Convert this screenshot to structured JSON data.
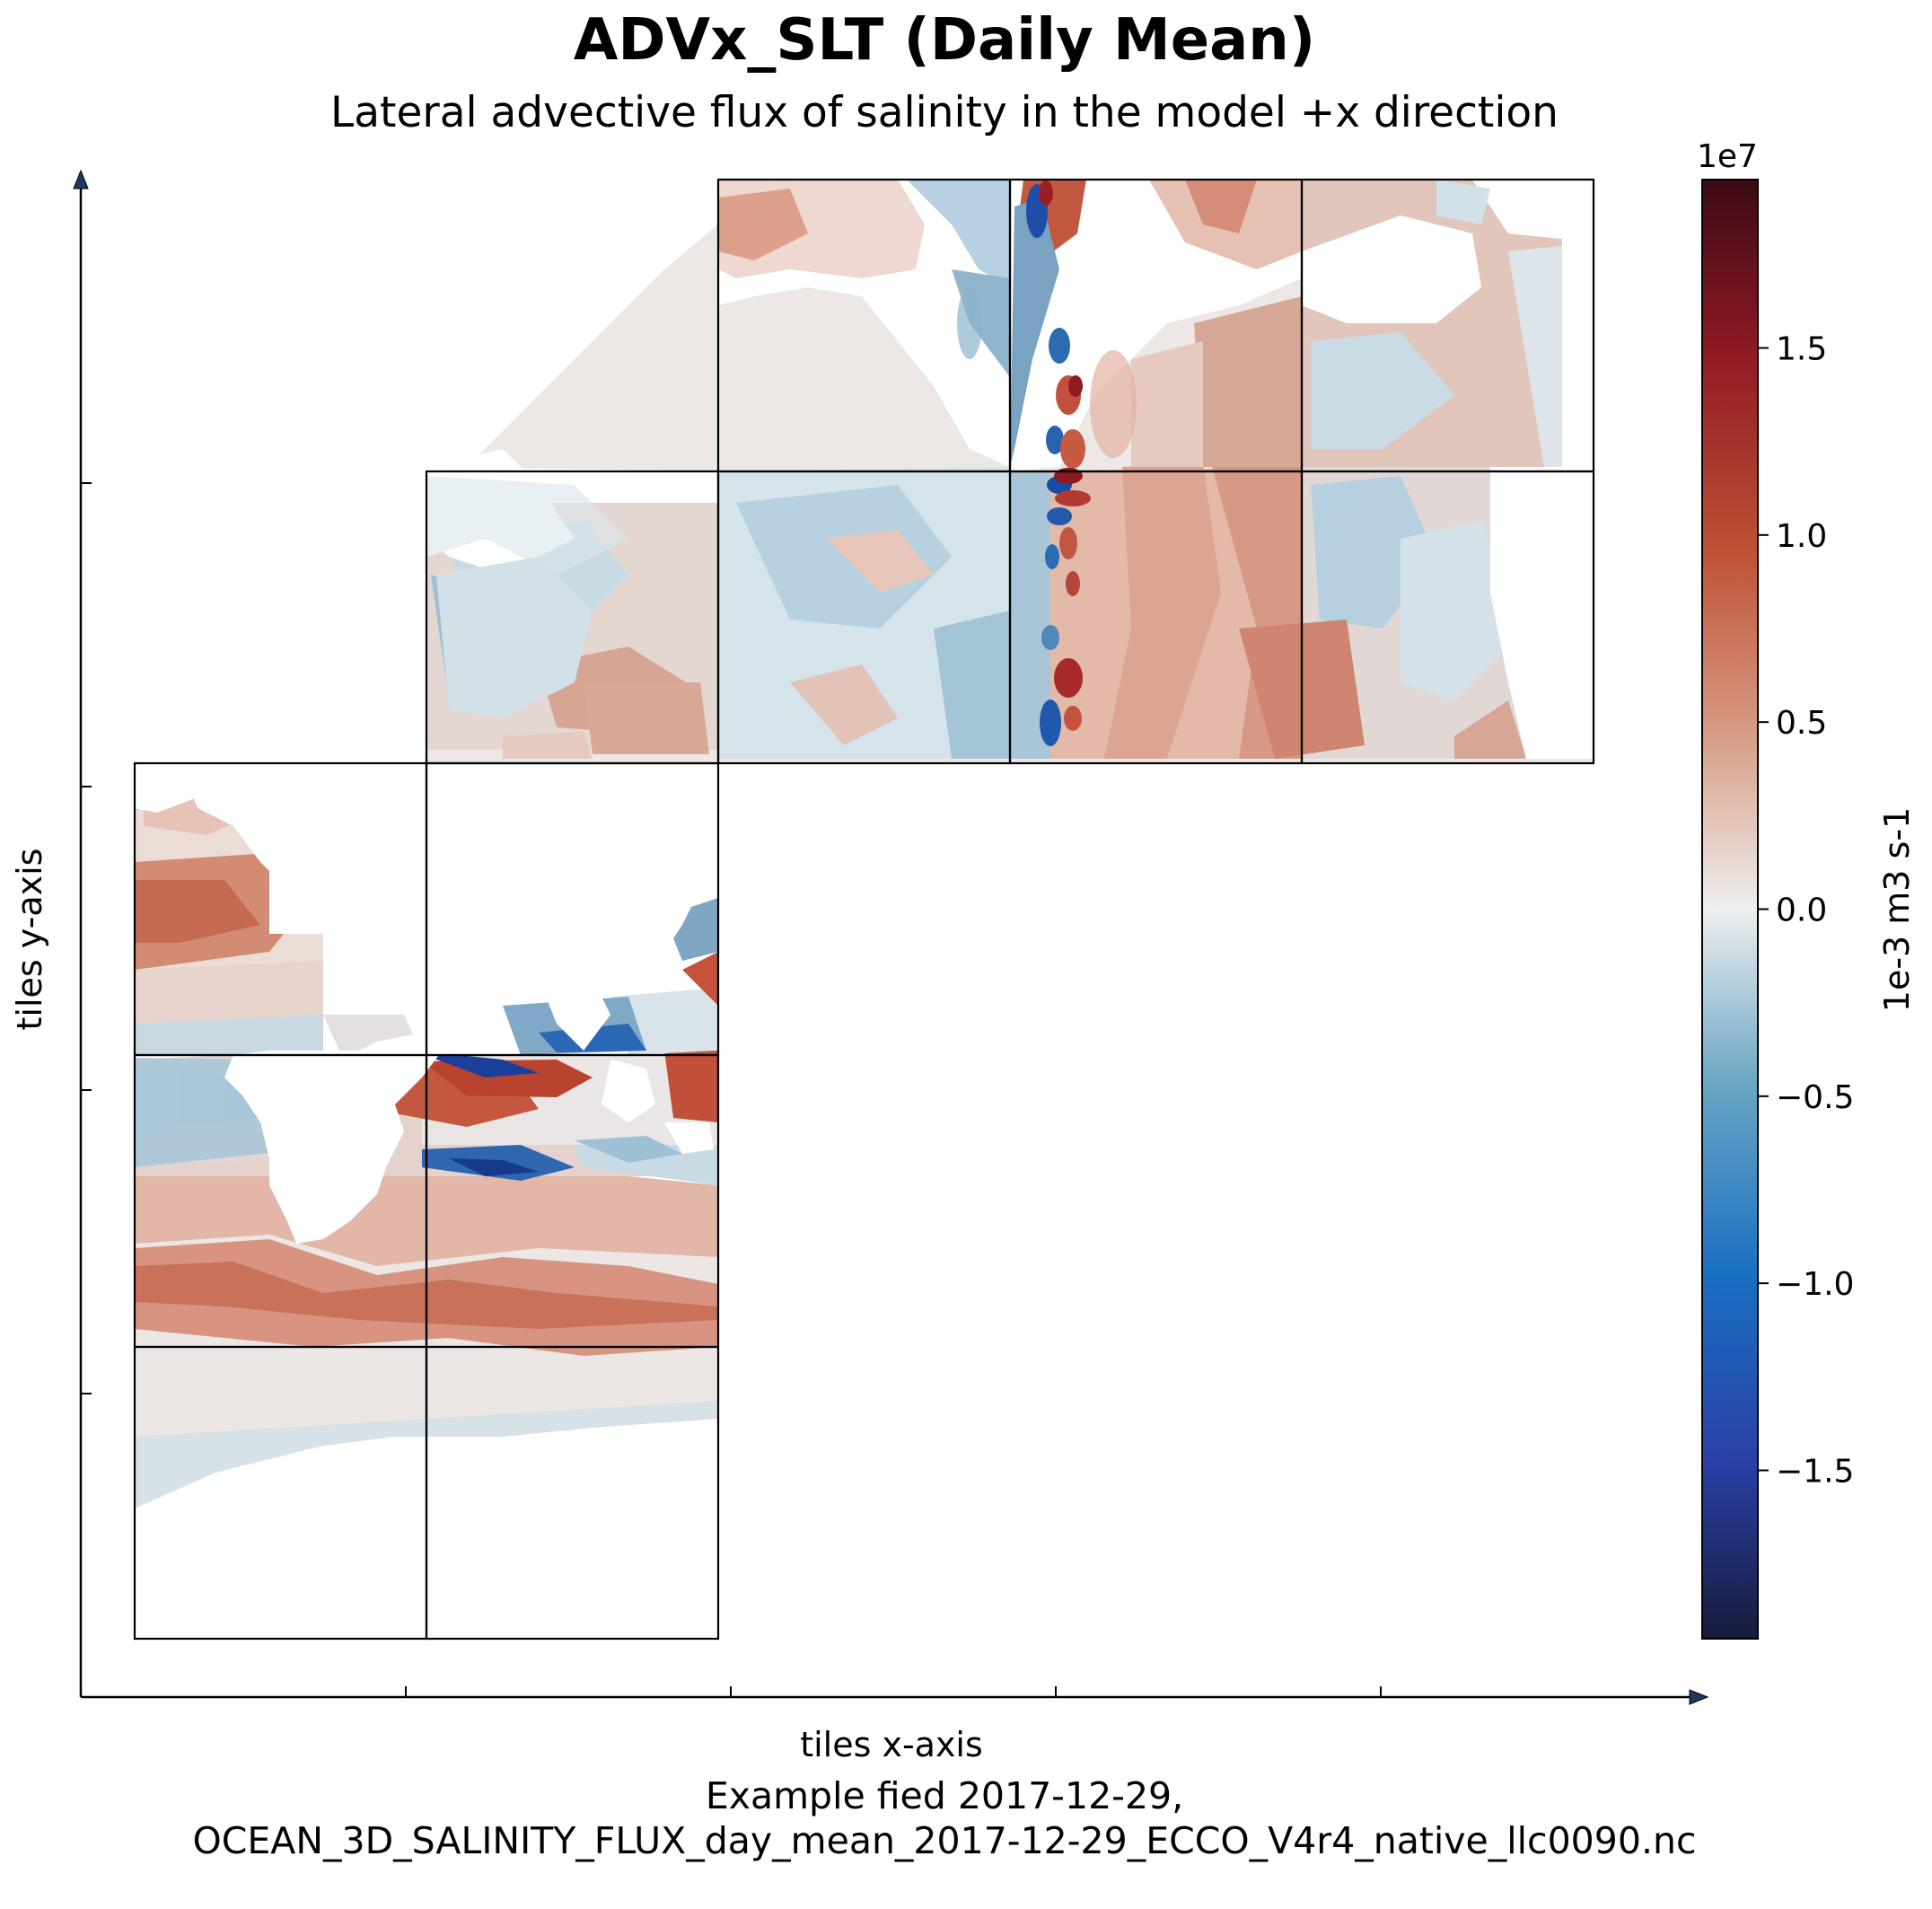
{
  "title": "ADVx_SLT (Daily Mean)",
  "subtitle": "Lateral advective flux of salinity in the model +x direction",
  "footer_line1": "Example fied 2017-12-29,",
  "footer_line2": "OCEAN_3D_SALINITY_FLUX_day_mean_2017-12-29_ECCO_V4r4_native_llc0090.nc",
  "chart_data": {
    "type": "heatmap",
    "title": "ADVx_SLT (Daily Mean)",
    "subtitle": "Lateral advective flux of salinity in the model +x direction",
    "xlabel": "tiles x-axis",
    "ylabel": "tiles y-axis",
    "colorbar": {
      "label": "1e-3 m3 s-1",
      "scale_label": "1e7",
      "vmin": -1.95,
      "vmax": 1.95,
      "ticks": [
        1.5,
        1.0,
        0.5,
        0.0,
        -0.5,
        -1.0,
        -1.5
      ],
      "tick_labels": [
        "1.5",
        "1.0",
        "0.5",
        "0.0",
        "−0.5",
        "−1.0",
        "−1.5"
      ],
      "colormap": "balance (dark blue - white - dark red)"
    },
    "layout": "llc tiles: 6 tiles lower-left block (2 columns x 3 rows), 6 tiles upper-right block (3 columns x 2 rows)",
    "colors": {
      "positive": "#c0483a",
      "negative": "#2a6db5",
      "neutral": "#e8e8e8",
      "axis_arrow": "#1f3a5f"
    }
  }
}
